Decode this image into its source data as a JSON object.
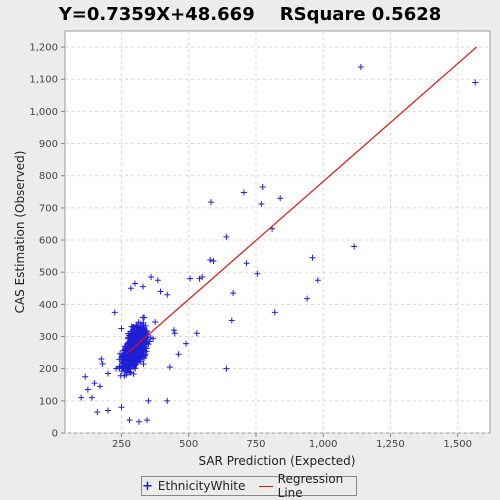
{
  "chart_data": {
    "type": "scatter",
    "title": "Y=0.7359X+48.669    RSquare 0.5628",
    "xlabel": "SAR Prediction (Expected)",
    "ylabel": "CAS Estimation (Observed)",
    "xlim": [
      40,
      1620
    ],
    "ylim": [
      0,
      1250
    ],
    "x_ticks": [
      250,
      500,
      750,
      1000,
      1250,
      1500
    ],
    "x_tick_labels": [
      "250",
      "500",
      "750",
      "1,000",
      "1,250",
      "1,500"
    ],
    "y_ticks": [
      0,
      100,
      200,
      300,
      400,
      500,
      600,
      700,
      800,
      900,
      1000,
      1100,
      1200
    ],
    "y_tick_labels": [
      "0",
      "100",
      "200",
      "300",
      "400",
      "500",
      "600",
      "700",
      "800",
      "900",
      "1,000",
      "1,100",
      "1,200"
    ],
    "grid": true,
    "legend_position": "bottom",
    "series": [
      {
        "name": "EthnicityWhite",
        "marker": "plus",
        "color": "#1f1fd6",
        "points": [
          [
            1140,
            1138
          ],
          [
            1565,
            1090
          ],
          [
            583,
            718
          ],
          [
            705,
            748
          ],
          [
            775,
            765
          ],
          [
            770,
            712
          ],
          [
            840,
            730
          ],
          [
            640,
            610
          ],
          [
            810,
            635
          ],
          [
            580,
            538
          ],
          [
            592,
            535
          ],
          [
            715,
            528
          ],
          [
            755,
            495
          ],
          [
            960,
            545
          ],
          [
            1115,
            580
          ],
          [
            980,
            475
          ],
          [
            940,
            418
          ],
          [
            820,
            375
          ],
          [
            665,
            435
          ],
          [
            660,
            350
          ],
          [
            550,
            485
          ],
          [
            540,
            480
          ],
          [
            505,
            480
          ],
          [
            530,
            310
          ],
          [
            490,
            278
          ],
          [
            462,
            245
          ],
          [
            448,
            310
          ],
          [
            445,
            320
          ],
          [
            640,
            200
          ],
          [
            430,
            205
          ],
          [
            420,
            100
          ],
          [
            350,
            100
          ],
          [
            345,
            40
          ],
          [
            315,
            35
          ],
          [
            280,
            40
          ],
          [
            250,
            80
          ],
          [
            200,
            70
          ],
          [
            160,
            65
          ],
          [
            140,
            110
          ],
          [
            100,
            110
          ],
          [
            115,
            175
          ],
          [
            150,
            155
          ],
          [
            170,
            145
          ],
          [
            125,
            135
          ],
          [
            180,
            215
          ],
          [
            175,
            230
          ],
          [
            225,
            375
          ],
          [
            250,
            325
          ],
          [
            300,
            465
          ],
          [
            330,
            455
          ],
          [
            360,
            485
          ],
          [
            385,
            475
          ],
          [
            395,
            440
          ],
          [
            420,
            430
          ],
          [
            375,
            345
          ],
          [
            285,
            450
          ],
          [
            230,
            200
          ],
          [
            200,
            185
          ],
          [
            265,
            250
          ],
          [
            315,
            265
          ],
          [
            330,
            260
          ]
        ],
        "dense_cluster": {
          "x_center": 300,
          "y_center": 265,
          "x_spread": 55,
          "y_spread": 60,
          "slope": 0.95,
          "n_points": 900
        }
      },
      {
        "name": "Regression Line",
        "type": "line",
        "color": "#e01010",
        "points": [
          [
            270,
            247
          ],
          [
            1570,
            1200
          ]
        ]
      }
    ]
  },
  "legend": {
    "items": [
      {
        "label": "EthnicityWhite",
        "marker": "+"
      },
      {
        "label": "Regression Line"
      }
    ]
  }
}
